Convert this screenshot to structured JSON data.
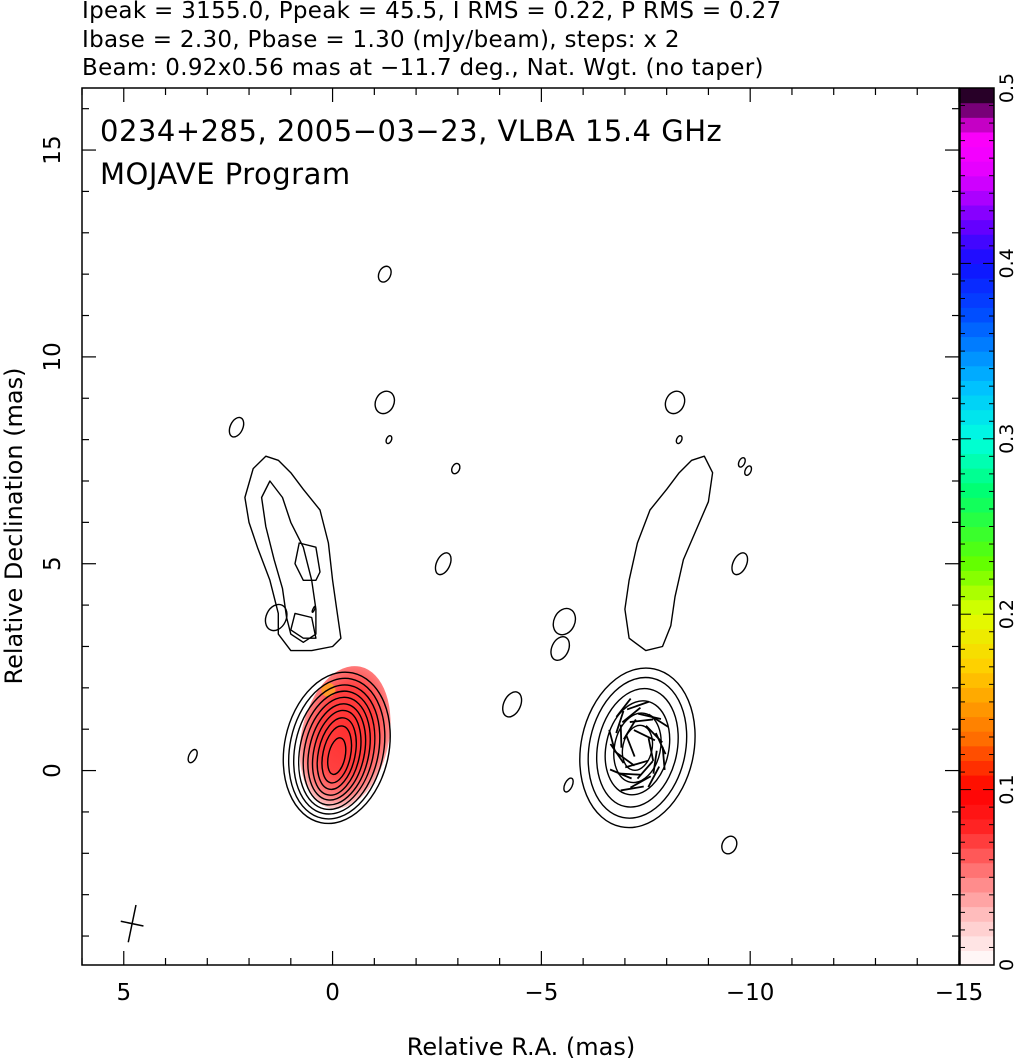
{
  "header": {
    "line1": "Ipeak = 3155.0, Ppeak = 45.5, I RMS = 0.22, P RMS = 0.27",
    "line2": "Ibase = 2.30, Pbase = 1.30 (mJy/beam), steps: x 2",
    "line3": "Beam: 0.92x0.56 mas at −11.7 deg., Nat. Wgt. (no taper)"
  },
  "plot_title": {
    "line1": "0234+285, 2005−03−23, VLBA 15.4 GHz",
    "line2": "MOJAVE Program"
  },
  "chart_data": {
    "type": "contour",
    "xlabel": "Relative R.A. (mas)",
    "ylabel": "Relative Declination (mas)",
    "xlim": [
      6.0,
      -15.0
    ],
    "ylim": [
      -4.7,
      16.5
    ],
    "x_ticks": [
      5,
      0,
      -5,
      -10,
      -15
    ],
    "x_tick_labels": [
      "5",
      "0",
      "−5",
      "−10",
      "−15"
    ],
    "y_ticks": [
      0,
      5,
      10,
      15
    ],
    "y_tick_labels": [
      "0",
      "5",
      "10",
      "15"
    ],
    "colorbar": {
      "range": [
        0,
        0.5
      ],
      "ticks": [
        0,
        0.1,
        0.2,
        0.3,
        0.4,
        0.5
      ],
      "tick_labels": [
        "0",
        "0.1",
        "0.2",
        "0.3",
        "0.4",
        "0.5"
      ],
      "stops": [
        {
          "v": 0.0,
          "c": "#ffffff"
        },
        {
          "v": 0.025,
          "c": "#ffc8c8"
        },
        {
          "v": 0.05,
          "c": "#ff8080"
        },
        {
          "v": 0.08,
          "c": "#ff2020"
        },
        {
          "v": 0.1,
          "c": "#ff0000"
        },
        {
          "v": 0.13,
          "c": "#ff7000"
        },
        {
          "v": 0.17,
          "c": "#ffd000"
        },
        {
          "v": 0.2,
          "c": "#e0ff00"
        },
        {
          "v": 0.23,
          "c": "#60ff00"
        },
        {
          "v": 0.27,
          "c": "#00ff70"
        },
        {
          "v": 0.3,
          "c": "#00ffe0"
        },
        {
          "v": 0.33,
          "c": "#00c0ff"
        },
        {
          "v": 0.37,
          "c": "#0050ff"
        },
        {
          "v": 0.4,
          "c": "#1010ff"
        },
        {
          "v": 0.42,
          "c": "#6000ff"
        },
        {
          "v": 0.45,
          "c": "#e000ff"
        },
        {
          "v": 0.47,
          "c": "#ff00ff"
        },
        {
          "v": 0.48,
          "c": "#c000c0"
        },
        {
          "v": 0.5,
          "c": "#000000"
        }
      ]
    },
    "panels": [
      {
        "name": "total intensity with fractional polarization",
        "core_center": [
          -0.1,
          0.5
        ],
        "core_contours": [
          {
            "rx": 1.25,
            "ry": 1.85,
            "cx": -0.1,
            "cy": 0.55
          },
          {
            "rx": 1.12,
            "ry": 1.72,
            "cx": -0.1,
            "cy": 0.53
          },
          {
            "rx": 1.0,
            "ry": 1.58,
            "cx": -0.1,
            "cy": 0.51
          },
          {
            "rx": 0.88,
            "ry": 1.45,
            "cx": -0.1,
            "cy": 0.49
          },
          {
            "rx": 0.77,
            "ry": 1.32,
            "cx": -0.1,
            "cy": 0.47
          },
          {
            "rx": 0.66,
            "ry": 1.18,
            "cx": -0.1,
            "cy": 0.45
          },
          {
            "rx": 0.55,
            "ry": 1.04,
            "cx": -0.1,
            "cy": 0.43
          },
          {
            "rx": 0.44,
            "ry": 0.88,
            "cx": -0.1,
            "cy": 0.41
          },
          {
            "rx": 0.33,
            "ry": 0.7,
            "cx": -0.1,
            "cy": 0.39
          },
          {
            "rx": 0.2,
            "ry": 0.45,
            "cx": -0.1,
            "cy": 0.35
          }
        ],
        "jet_contours": [
          [
            [
              -0.2,
              3.2
            ],
            [
              -0.1,
              3.9
            ],
            [
              0.0,
              4.6
            ],
            [
              0.1,
              5.5
            ],
            [
              0.3,
              6.3
            ],
            [
              0.7,
              6.8
            ],
            [
              1.0,
              7.2
            ],
            [
              1.3,
              7.5
            ],
            [
              1.6,
              7.6
            ],
            [
              1.9,
              7.3
            ],
            [
              2.1,
              6.6
            ],
            [
              2.0,
              6.0
            ],
            [
              1.8,
              5.4
            ],
            [
              1.5,
              4.6
            ],
            [
              1.3,
              3.8
            ],
            [
              1.3,
              3.3
            ],
            [
              1.0,
              2.9
            ],
            [
              0.5,
              2.9
            ],
            [
              0.0,
              3.0
            ],
            [
              -0.2,
              3.2
            ]
          ],
          [
            [
              0.4,
              3.3
            ],
            [
              0.4,
              3.9
            ],
            [
              0.5,
              4.6
            ],
            [
              0.7,
              5.4
            ],
            [
              1.0,
              6.0
            ],
            [
              1.2,
              6.6
            ],
            [
              1.5,
              7.0
            ],
            [
              1.7,
              6.6
            ],
            [
              1.6,
              5.9
            ],
            [
              1.4,
              5.1
            ],
            [
              1.2,
              4.4
            ],
            [
              1.1,
              3.7
            ],
            [
              1.0,
              3.3
            ],
            [
              0.7,
              3.1
            ],
            [
              0.4,
              3.3
            ]
          ],
          [
            [
              0.3,
              4.8
            ],
            [
              0.4,
              5.4
            ],
            [
              0.8,
              5.5
            ],
            [
              0.9,
              5.0
            ],
            [
              0.7,
              4.6
            ],
            [
              0.4,
              4.6
            ],
            [
              0.3,
              4.8
            ]
          ],
          [
            [
              0.4,
              3.2
            ],
            [
              0.5,
              3.7
            ],
            [
              0.9,
              3.8
            ],
            [
              1.0,
              3.4
            ],
            [
              0.7,
              3.2
            ],
            [
              0.4,
              3.2
            ]
          ]
        ],
        "pol_region": {
          "cx": -0.3,
          "cy": 0.8,
          "rx": 1.05,
          "ry": 1.75,
          "max_frac": 0.09
        }
      },
      {
        "name": "total intensity with polarization vectors",
        "core_center": [
          -7.3,
          0.6
        ],
        "core_contours": [
          {
            "rx": 1.35,
            "ry": 1.95,
            "cx": -7.3,
            "cy": 0.55
          },
          {
            "rx": 1.15,
            "ry": 1.72,
            "cx": -7.3,
            "cy": 0.55
          },
          {
            "rx": 0.95,
            "ry": 1.45,
            "cx": -7.3,
            "cy": 0.55
          },
          {
            "rx": 0.75,
            "ry": 1.15,
            "cx": -7.3,
            "cy": 0.55
          },
          {
            "rx": 0.55,
            "ry": 0.85,
            "cx": -7.3,
            "cy": 0.55
          },
          {
            "rx": 0.35,
            "ry": 0.55,
            "cx": -7.3,
            "cy": 0.55
          }
        ],
        "jet_contours": [
          [
            [
              -7.1,
              3.2
            ],
            [
              -7.0,
              3.9
            ],
            [
              -7.1,
              4.6
            ],
            [
              -7.3,
              5.5
            ],
            [
              -7.6,
              6.3
            ],
            [
              -8.0,
              6.8
            ],
            [
              -8.3,
              7.2
            ],
            [
              -8.6,
              7.5
            ],
            [
              -8.9,
              7.6
            ],
            [
              -9.1,
              7.2
            ],
            [
              -9.0,
              6.5
            ],
            [
              -8.7,
              5.8
            ],
            [
              -8.4,
              5.1
            ],
            [
              -8.2,
              4.2
            ],
            [
              -8.1,
              3.5
            ],
            [
              -7.9,
              3.0
            ],
            [
              -7.5,
              2.9
            ],
            [
              -7.1,
              3.2
            ]
          ]
        ]
      }
    ],
    "noise_contours": [
      {
        "x": 2.3,
        "y": 8.3,
        "rx": 0.15,
        "ry": 0.25
      },
      {
        "x": -1.25,
        "y": 12.0,
        "rx": 0.14,
        "ry": 0.2
      },
      {
        "x": -1.25,
        "y": 8.9,
        "rx": 0.22,
        "ry": 0.28
      },
      {
        "x": -1.35,
        "y": 8.0,
        "rx": 0.06,
        "ry": 0.1
      },
      {
        "x": -2.95,
        "y": 7.3,
        "rx": 0.09,
        "ry": 0.13
      },
      {
        "x": -2.65,
        "y": 5.0,
        "rx": 0.16,
        "ry": 0.28
      },
      {
        "x": 1.35,
        "y": 3.7,
        "rx": 0.24,
        "ry": 0.33
      },
      {
        "x": 0.45,
        "y": 3.9,
        "rx": 0.02,
        "ry": 0.08
      },
      {
        "x": 3.35,
        "y": 0.35,
        "rx": 0.09,
        "ry": 0.17
      },
      {
        "x": -4.3,
        "y": 1.6,
        "rx": 0.2,
        "ry": 0.32
      },
      {
        "x": -5.55,
        "y": 3.6,
        "rx": 0.25,
        "ry": 0.33
      },
      {
        "x": -5.45,
        "y": 2.95,
        "rx": 0.2,
        "ry": 0.3
      },
      {
        "x": -5.65,
        "y": -0.35,
        "rx": 0.09,
        "ry": 0.18
      },
      {
        "x": -8.2,
        "y": 8.9,
        "rx": 0.22,
        "ry": 0.28
      },
      {
        "x": -8.3,
        "y": 8.0,
        "rx": 0.06,
        "ry": 0.1
      },
      {
        "x": -9.8,
        "y": 7.45,
        "rx": 0.07,
        "ry": 0.12
      },
      {
        "x": -9.95,
        "y": 7.25,
        "rx": 0.07,
        "ry": 0.12
      },
      {
        "x": -9.75,
        "y": 5.0,
        "rx": 0.16,
        "ry": 0.28
      },
      {
        "x": -9.5,
        "y": -1.8,
        "rx": 0.17,
        "ry": 0.22
      }
    ],
    "beam": {
      "x": 4.8,
      "y": -3.7,
      "major_mas": 0.92,
      "minor_mas": 0.56,
      "pa_deg": -11.7
    }
  }
}
